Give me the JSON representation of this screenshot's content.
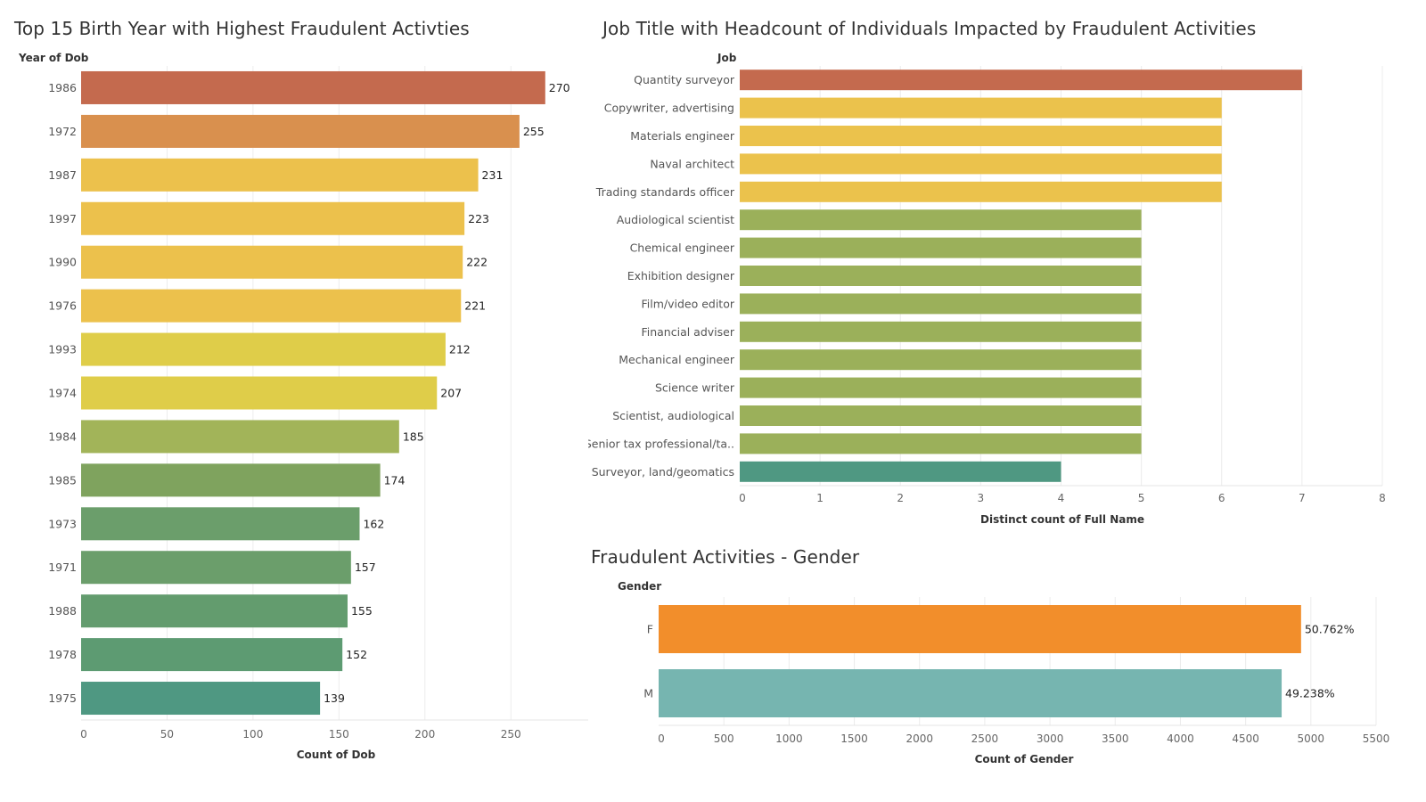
{
  "chart_data": [
    {
      "type": "bar",
      "orientation": "horizontal",
      "title": "Top 15 Birth Year with Highest Fraudulent Activties",
      "row_header": "Year of Dob",
      "xlabel": "Count of Dob",
      "categories": [
        "1986",
        "1972",
        "1987",
        "1997",
        "1990",
        "1976",
        "1993",
        "1974",
        "1984",
        "1985",
        "1973",
        "1971",
        "1988",
        "1978",
        "1975"
      ],
      "values": [
        270,
        255,
        231,
        223,
        222,
        221,
        212,
        207,
        185,
        174,
        162,
        157,
        155,
        152,
        139
      ],
      "colors": [
        "#c46a4e",
        "#d9904e",
        "#ecc14c",
        "#ecc14c",
        "#ecc14c",
        "#ecc14c",
        "#dfcd49",
        "#dfcd49",
        "#a2b459",
        "#7fa35e",
        "#6b9e6b",
        "#6b9e6b",
        "#639c6e",
        "#5d9b72",
        "#4f9882"
      ],
      "xlim": [
        0,
        295
      ],
      "xticks": [
        0,
        50,
        100,
        150,
        200,
        250
      ],
      "grid": true
    },
    {
      "type": "bar",
      "orientation": "horizontal",
      "title": "Job Title with Headcount of Individuals Impacted by Fraudulent Activities",
      "row_header": "Job",
      "xlabel": "Distinct count of Full Name",
      "categories": [
        "Quantity surveyor",
        "Copywriter, advertising",
        "Materials engineer",
        "Naval architect",
        "Trading standards officer",
        "Audiological scientist",
        "Chemical engineer",
        "Exhibition designer",
        "Film/video editor",
        "Financial adviser",
        "Mechanical engineer",
        "Science writer",
        "Scientist, audiological",
        "Senior tax professional/ta..",
        "Surveyor, land/geomatics"
      ],
      "values": [
        7,
        6,
        6,
        6,
        6,
        5,
        5,
        5,
        5,
        5,
        5,
        5,
        5,
        5,
        4
      ],
      "colors": [
        "#c46a4e",
        "#ebc24c",
        "#ebc24c",
        "#ebc24c",
        "#ebc24c",
        "#9bb05a",
        "#9bb05a",
        "#9bb05a",
        "#9bb05a",
        "#9bb05a",
        "#9bb05a",
        "#9bb05a",
        "#9bb05a",
        "#9bb05a",
        "#4f9882"
      ],
      "xlim": [
        0,
        8
      ],
      "xticks": [
        0,
        1,
        2,
        3,
        4,
        5,
        6,
        7,
        8
      ],
      "grid": true
    },
    {
      "type": "bar",
      "orientation": "horizontal",
      "title": "Fraudulent Activities  - Gender",
      "row_header": "Gender",
      "xlabel": "Count of Gender",
      "categories": [
        "F",
        "M"
      ],
      "values": [
        4925,
        4776
      ],
      "data_labels": [
        "50.762%",
        "49.238%"
      ],
      "colors": [
        "#f28e2b",
        "#76b5b0"
      ],
      "xlim": [
        0,
        5500
      ],
      "xticks": [
        0,
        500,
        1000,
        1500,
        2000,
        2500,
        3000,
        3500,
        4000,
        4500,
        5000,
        5500
      ],
      "grid": true
    }
  ]
}
